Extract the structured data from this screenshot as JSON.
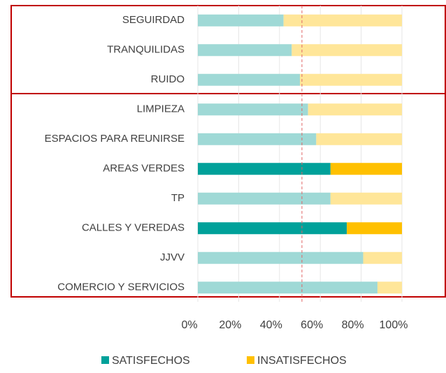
{
  "chart_data": {
    "type": "stacked-bar-horizontal",
    "categories": [
      "SEGUIRDAD",
      "TRANQUILIDAS",
      "RUIDO",
      "LIMPIEZA",
      "ESPACIOS PARA REUNIRSE",
      "AREAS VERDES",
      "TP",
      "CALLES Y VEREDAS",
      "JJVV",
      "COMERCIO Y SERVICIOS"
    ],
    "series": [
      {
        "name": "SATISFECHOS",
        "color": "#00a19a",
        "muted_color": "#9fd9d6",
        "values": [
          42,
          46,
          50,
          54,
          58,
          65,
          65,
          73,
          81,
          88
        ]
      },
      {
        "name": "INSATISFECHOS",
        "color": "#ffc000",
        "muted_color": "#ffe699",
        "values": [
          58,
          54,
          50,
          46,
          42,
          35,
          35,
          27,
          19,
          12
        ]
      }
    ],
    "highlight": [
      5,
      7
    ],
    "reference_line": 51,
    "reference_color": "#e06666",
    "xlim": [
      0,
      100
    ],
    "xticks": [
      {
        "value": 0,
        "label": "0%"
      },
      {
        "value": 20,
        "label": "20%"
      },
      {
        "value": 40,
        "label": "40%"
      },
      {
        "value": 60,
        "label": "60%"
      },
      {
        "value": 80,
        "label": "80%"
      },
      {
        "value": 100,
        "label": "100%"
      }
    ],
    "legend": "bottom"
  }
}
